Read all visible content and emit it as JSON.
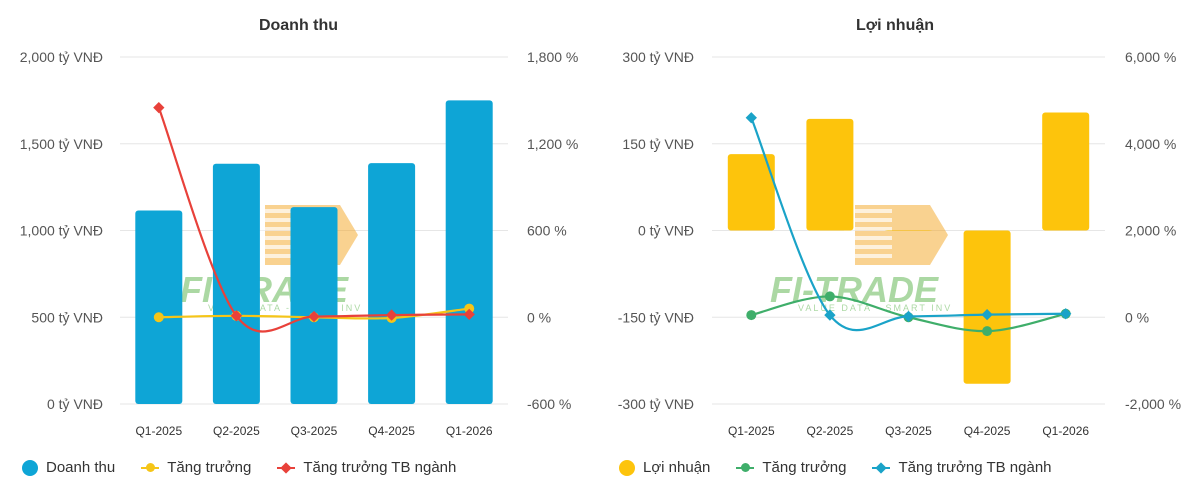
{
  "colors": {
    "revenue_bar": "#0ea5d6",
    "growth_yellow": "#f5c518",
    "industry_red": "#e8413a",
    "profit_bar": "#fdc40c",
    "growth_green": "#3fae6a",
    "industry_teal": "#1aa3c8",
    "grid": "#e6e6e6"
  },
  "watermark": {
    "brand": "FI-TRADE",
    "tagline": "VALUE DATA - SMART INV"
  },
  "chart_data": [
    {
      "type": "bar",
      "title": "Doanh thu",
      "categories": [
        "Q1-2025",
        "Q2-2025",
        "Q3-2025",
        "Q4-2025",
        "Q1-2026"
      ],
      "y_left": {
        "ticks": [
          "0 tỷ VNĐ",
          "500 tỷ VNĐ",
          "1,000 tỷ VNĐ",
          "1,500 tỷ VNĐ",
          "2,000 tỷ VNĐ"
        ],
        "range": [
          0,
          2000
        ]
      },
      "y_right": {
        "ticks": [
          "-600 %",
          "0 %",
          "600 %",
          "1,200 %",
          "1,800 %"
        ],
        "range": [
          -600,
          1800
        ]
      },
      "series": [
        {
          "name": "Doanh thu",
          "kind": "bar",
          "axis": "left",
          "icon": "circle",
          "values": [
            1115,
            1385,
            1135,
            1388,
            1750
          ]
        },
        {
          "name": "Tăng trưởng",
          "kind": "line",
          "axis": "right",
          "icon": "circle",
          "values": [
            0,
            10,
            0,
            -5,
            60
          ]
        },
        {
          "name": "Tăng trưởng TB ngành",
          "kind": "line",
          "axis": "right",
          "icon": "diamond",
          "values": [
            1450,
            10,
            5,
            15,
            20
          ]
        }
      ]
    },
    {
      "type": "bar",
      "title": "Lợi nhuận",
      "categories": [
        "Q1-2025",
        "Q2-2025",
        "Q3-2025",
        "Q4-2025",
        "Q1-2026"
      ],
      "y_left": {
        "ticks": [
          "-300 tỷ VNĐ",
          "-150 tỷ VNĐ",
          "0 tỷ VNĐ",
          "150 tỷ VNĐ",
          "300 tỷ VNĐ"
        ],
        "range": [
          -300,
          300
        ]
      },
      "y_right": {
        "ticks": [
          "-2,000 %",
          "0 %",
          "2,000 %",
          "4,000 %",
          "6,000 %"
        ],
        "range": [
          -2000,
          6000
        ]
      },
      "series": [
        {
          "name": "Lợi nhuận",
          "kind": "bar",
          "axis": "left",
          "icon": "circle",
          "values": [
            132,
            193,
            0,
            -265,
            204
          ]
        },
        {
          "name": "Tăng trưởng",
          "kind": "line",
          "axis": "right",
          "icon": "circle",
          "values": [
            50,
            480,
            0,
            -320,
            80
          ]
        },
        {
          "name": "Tăng trưởng TB ngành",
          "kind": "line",
          "axis": "right",
          "icon": "diamond",
          "values": [
            4600,
            50,
            20,
            60,
            80
          ]
        }
      ]
    }
  ]
}
